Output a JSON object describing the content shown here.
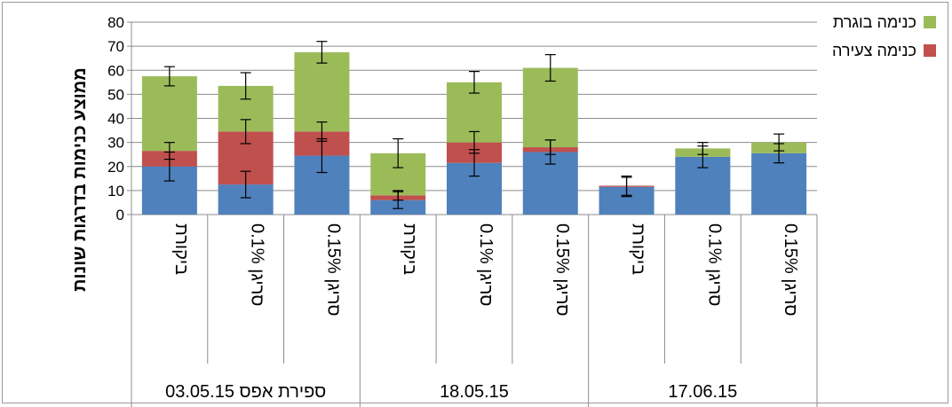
{
  "chart_data": {
    "type": "bar",
    "stacked": true,
    "ylabel": "ממוצע כנימות בדרגות שונות",
    "ylim": [
      0,
      80
    ],
    "yticks": [
      0,
      10,
      20,
      30,
      40,
      50,
      60,
      70,
      80
    ],
    "grid": true,
    "legend_position": "top-right",
    "groups": [
      {
        "label": "03.05.15 ספירת אפס",
        "categories": [
          "ביקורת",
          "0.1% סריגן",
          "0.15% סריגן"
        ]
      },
      {
        "label": "18.05.15",
        "categories": [
          "ביקורת",
          "0.1% סריגן",
          "0.15% סריגן"
        ]
      },
      {
        "label": "17.06.15",
        "categories": [
          "ביקורת",
          "0.1% סריגן",
          "0.15% סריגן"
        ]
      }
    ],
    "categories": [
      "ביקורת",
      "0.1% סריגן",
      "0.15% סריגן",
      "ביקורת",
      "0.1% סריגן",
      "0.15% סריגן",
      "ביקורת",
      "0.1% סריגן",
      "0.15% סריגן"
    ],
    "series": [
      {
        "name": "",
        "color": "#4f81bd",
        "values": [
          20,
          12.5,
          24.5,
          6,
          21.5,
          26,
          11.5,
          24,
          25.5
        ],
        "error": [
          6,
          5.5,
          7,
          3.5,
          5.5,
          5,
          4,
          4.5,
          4
        ]
      },
      {
        "name": "כנימה צעירה",
        "color": "#c0504d",
        "values": [
          6.5,
          22,
          10,
          2,
          8.5,
          2,
          0.5,
          0,
          0
        ],
        "error": [
          3.5,
          5,
          4,
          2,
          4.5,
          3,
          0,
          0,
          0
        ]
      },
      {
        "name": "כנימה בוגרת",
        "color": "#9bbb59",
        "values": [
          31,
          19,
          33,
          17.5,
          25,
          33,
          0,
          3.5,
          4.5
        ],
        "error": [
          4,
          5.5,
          4.5,
          6,
          4.5,
          5.5,
          4,
          2.5,
          3.5
        ]
      }
    ]
  }
}
